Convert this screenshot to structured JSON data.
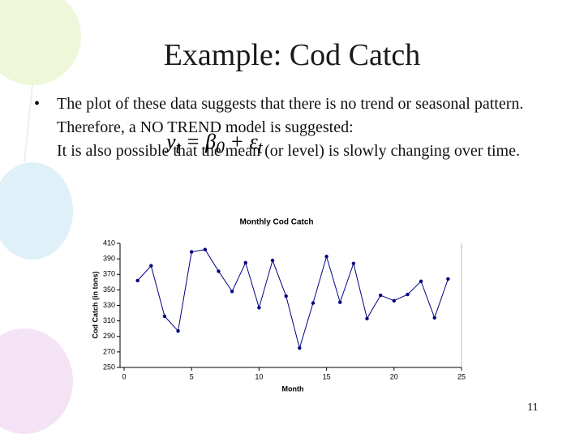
{
  "slide": {
    "title": "Example: Cod Catch",
    "bullet": "The plot of these data suggests that there is no trend or seasonal pattern. Therefore, a NO TREND model is suggested:",
    "bullet_continued": "It is also possible that the mean (or level) is slowly changing over time.",
    "formula": [
      "y",
      "t",
      " = β",
      "0",
      " + ε",
      "t"
    ],
    "page_number": "11"
  },
  "chart_data": {
    "type": "line",
    "title": "Monthly Cod Catch",
    "x_label": "Month",
    "y_label": "Cod Catch (in tons)",
    "x": [
      1,
      2,
      3,
      4,
      5,
      6,
      7,
      8,
      9,
      10,
      11,
      12,
      13,
      14,
      15,
      16,
      17,
      18,
      19,
      20,
      21,
      22,
      23,
      24
    ],
    "series": [
      {
        "name": "Cod Catch",
        "color": "#000080",
        "values": [
          362,
          381,
          316,
          297,
          399,
          402,
          374,
          348,
          385,
          327,
          388,
          342,
          275,
          333,
          393,
          334,
          384,
          313,
          343,
          336,
          344,
          361,
          314,
          364
        ]
      }
    ],
    "xlim": [
      0,
      25
    ],
    "xticks": [
      0,
      5,
      10,
      15,
      20,
      25
    ],
    "ylim": [
      250,
      410
    ],
    "yticks": [
      250,
      270,
      290,
      310,
      330,
      350,
      370,
      390,
      410
    ]
  }
}
